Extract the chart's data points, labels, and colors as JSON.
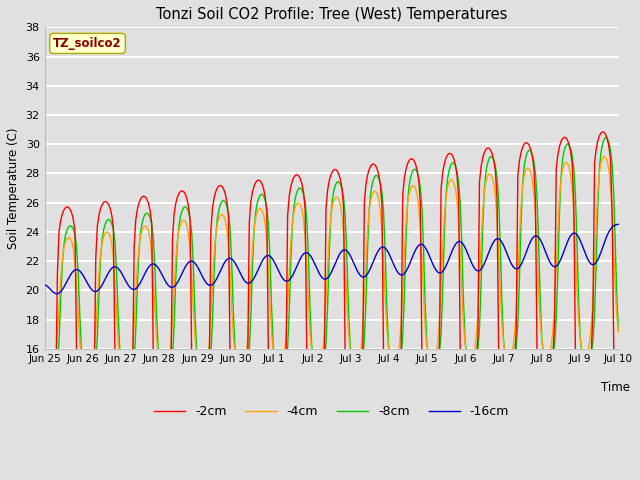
{
  "title": "Tonzi Soil CO2 Profile: Tree (West) Temperatures",
  "ylabel": "Soil Temperature (C)",
  "xlabel": "Time",
  "dataset_label": "TZ_soilco2",
  "ylim": [
    16,
    38
  ],
  "legend_labels": [
    "-2cm",
    "-4cm",
    "-8cm",
    "-16cm"
  ],
  "line_colors": [
    "#ff0000",
    "#ffa500",
    "#00cc00",
    "#0000cc"
  ],
  "background_color": "#e0e0e0",
  "plot_bg_color": "#e0e0e0",
  "tick_labels": [
    "Jun 25",
    "Jun 26",
    "Jun 27",
    "Jun 28",
    "Jun 29",
    "Jun 30",
    "Jul 1",
    "Jul 2",
    "Jul 3",
    "Jul 4",
    "Jul 5",
    "Jul 6",
    "Jul 7",
    "Jul 8",
    "Jul 9",
    "Jul 10"
  ],
  "grid_color": "#ffffff",
  "annotation_bg": "#ffffcc",
  "annotation_color": "#8b0000"
}
